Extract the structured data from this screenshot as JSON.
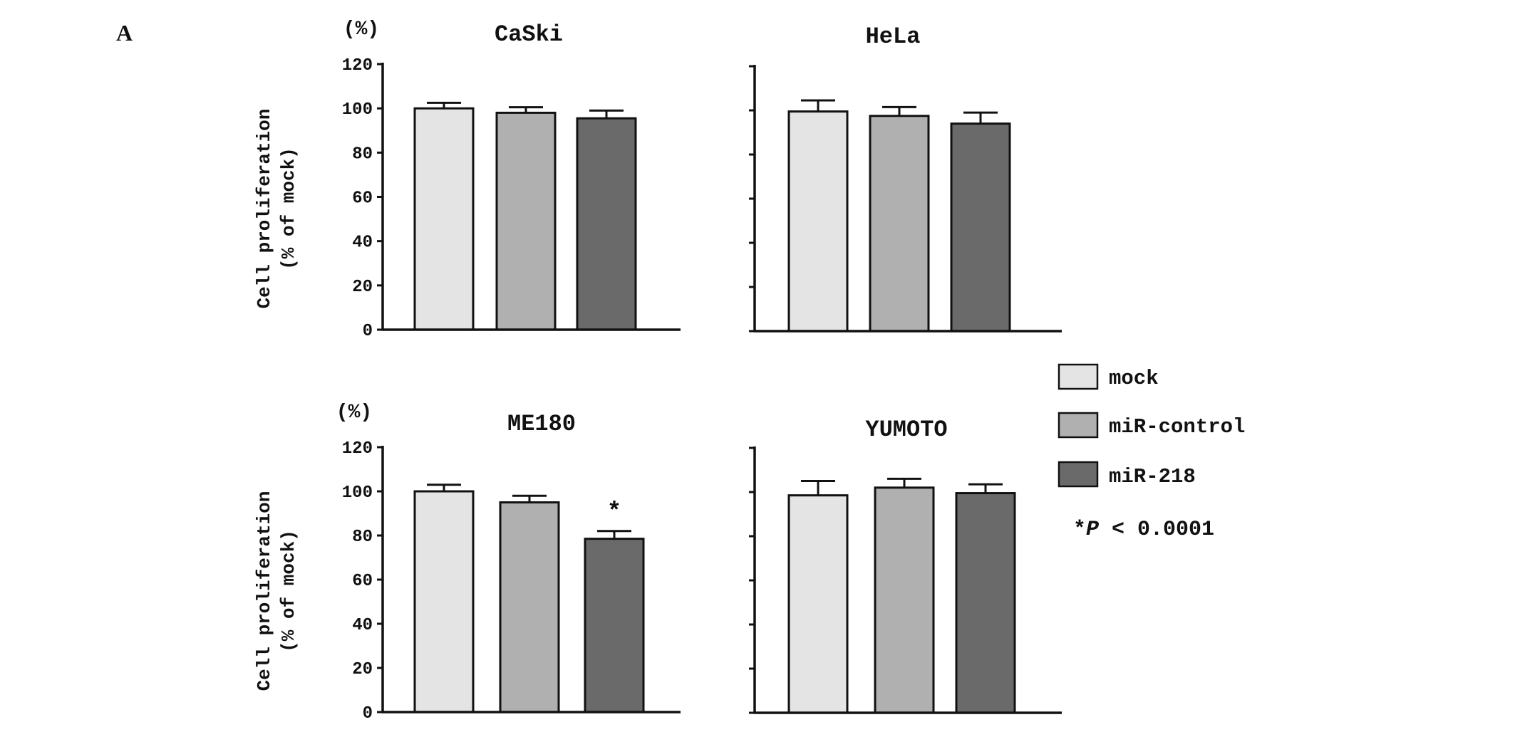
{
  "panel_label": "A",
  "y_axis_label_line1": "Cell proliferation",
  "y_axis_label_line2": "(% of mock)",
  "unit_label": "(%)",
  "colors": {
    "mock": "#e4e4e4",
    "miR-control": "#b0b0b0",
    "miR-218": "#6a6a6a",
    "stroke": "#111111"
  },
  "legend": {
    "items": [
      "mock",
      "miR-control",
      "miR-218"
    ],
    "note_star": "*",
    "note_p": "P",
    "note_rest": " < 0.0001"
  },
  "chart_data": [
    {
      "type": "bar",
      "title": "CaSki",
      "categories": [
        "mock",
        "miR-control",
        "miR-218"
      ],
      "values": [
        100,
        98,
        95.5
      ],
      "errors": [
        2.5,
        2.5,
        3.5
      ],
      "ylim": [
        0,
        120
      ],
      "yticks": [
        "0",
        "20",
        "40",
        "60",
        "80",
        "100",
        "120"
      ],
      "significant": [
        false,
        false,
        false
      ]
    },
    {
      "type": "bar",
      "title": "HeLa",
      "categories": [
        "mock",
        "miR-control",
        "miR-218"
      ],
      "values": [
        99.5,
        97.5,
        94
      ],
      "errors": [
        5,
        4,
        5
      ],
      "ylim": [
        0,
        120
      ],
      "yticks": [],
      "significant": [
        false,
        false,
        false
      ]
    },
    {
      "type": "bar",
      "title": "ME180",
      "categories": [
        "mock",
        "miR-control",
        "miR-218"
      ],
      "values": [
        100,
        95,
        78.5
      ],
      "errors": [
        3,
        3,
        3.5
      ],
      "ylim": [
        0,
        120
      ],
      "yticks": [
        "0",
        "20",
        "40",
        "60",
        "80",
        "100",
        "120"
      ],
      "significant": [
        false,
        false,
        true
      ]
    },
    {
      "type": "bar",
      "title": "YUMOTO",
      "categories": [
        "mock",
        "miR-control",
        "miR-218"
      ],
      "values": [
        98.5,
        102,
        99.5
      ],
      "errors": [
        6.5,
        4,
        4
      ],
      "ylim": [
        0,
        120
      ],
      "yticks": [],
      "significant": [
        false,
        false,
        false
      ]
    }
  ]
}
